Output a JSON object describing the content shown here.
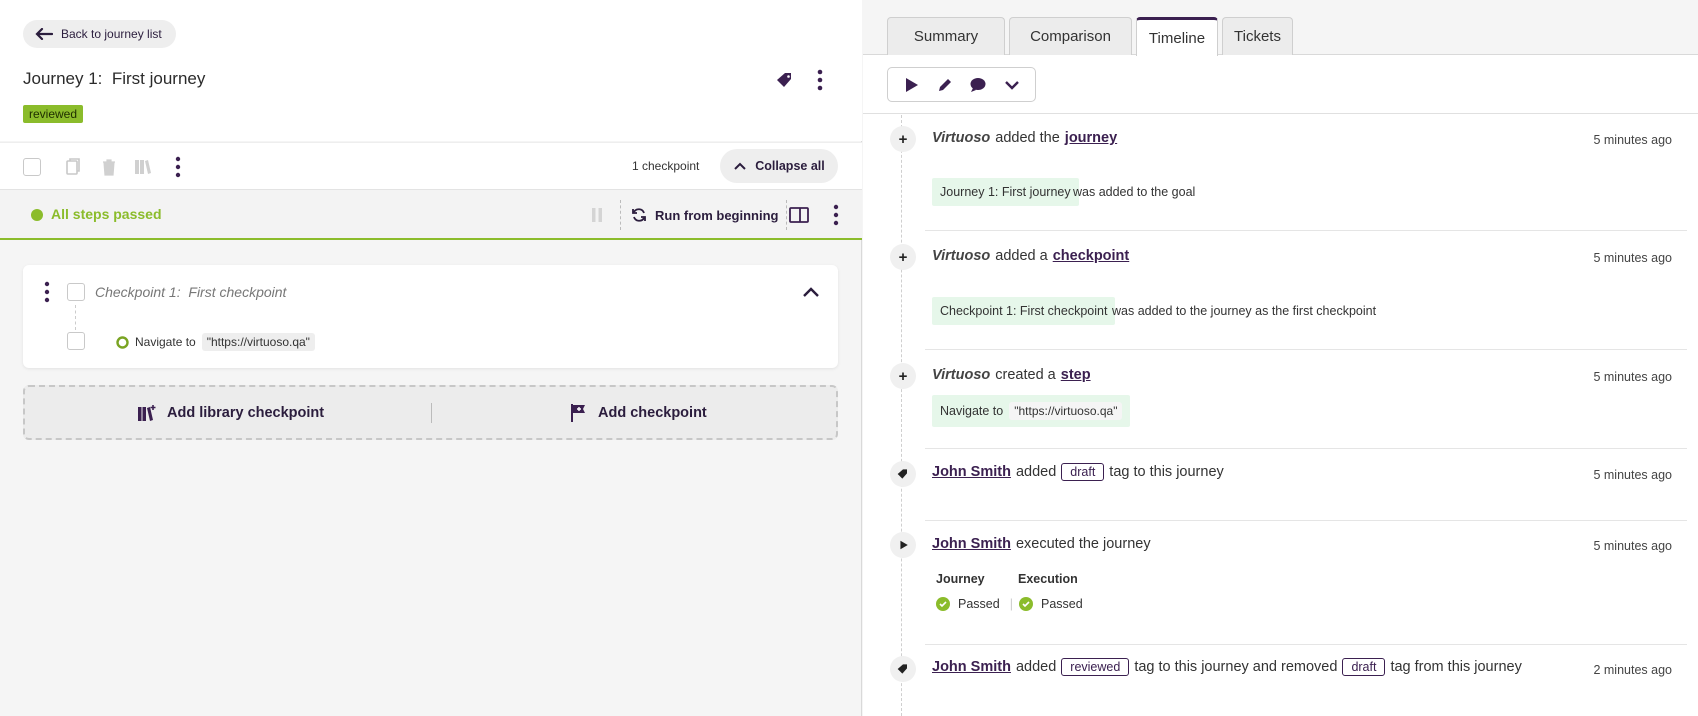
{
  "left": {
    "back_label": "Back to journey list",
    "journey_prefix": "Journey 1:",
    "journey_name": "First journey",
    "status_badge": "reviewed",
    "checkpoint_count": "1 checkpoint",
    "collapse_label": "Collapse all",
    "run_status": "All steps passed",
    "run_label": "Run from beginning",
    "checkpoint": {
      "prefix": "Checkpoint 1:",
      "name": "First checkpoint",
      "step_action": "Navigate to",
      "step_value": "\"https://virtuoso.qa\""
    },
    "add_library_label": "Add library checkpoint",
    "add_checkpoint_label": "Add checkpoint"
  },
  "right": {
    "tabs": [
      {
        "label": "Summary"
      },
      {
        "label": "Comparison"
      },
      {
        "label": "Timeline"
      },
      {
        "label": "Tickets"
      }
    ],
    "active_tab": "Timeline",
    "events": [
      {
        "actor": "Virtuoso",
        "verb": "added the",
        "object": "journey",
        "time": "5 minutes ago",
        "chip": "Journey 1: First journey",
        "note": "was added to the goal"
      },
      {
        "actor": "Virtuoso",
        "verb": "added a",
        "object": "checkpoint",
        "time": "5 minutes ago",
        "chip": "Checkpoint 1: First checkpoint",
        "note": "was added to the journey as the first checkpoint"
      },
      {
        "actor": "Virtuoso",
        "verb": "created a",
        "object": "step",
        "time": "5 minutes ago",
        "chip_action": "Navigate to",
        "chip_value": "\"https://virtuoso.qa\""
      },
      {
        "actor": "John Smith",
        "verb": "added",
        "tag": "draft",
        "rest": "tag to this journey",
        "time": "5 minutes ago"
      },
      {
        "actor": "John Smith",
        "rest": "executed the journey",
        "time": "5 minutes ago",
        "col1": "Journey",
        "col2": "Execution",
        "status1": "Passed",
        "status2": "Passed",
        "sep": "|"
      },
      {
        "actor": "John Smith",
        "verb": "added",
        "tag": "reviewed",
        "mid": "tag to this journey and removed",
        "tag2": "draft",
        "rest": "tag from this journey",
        "time": "2 minutes ago"
      }
    ]
  }
}
